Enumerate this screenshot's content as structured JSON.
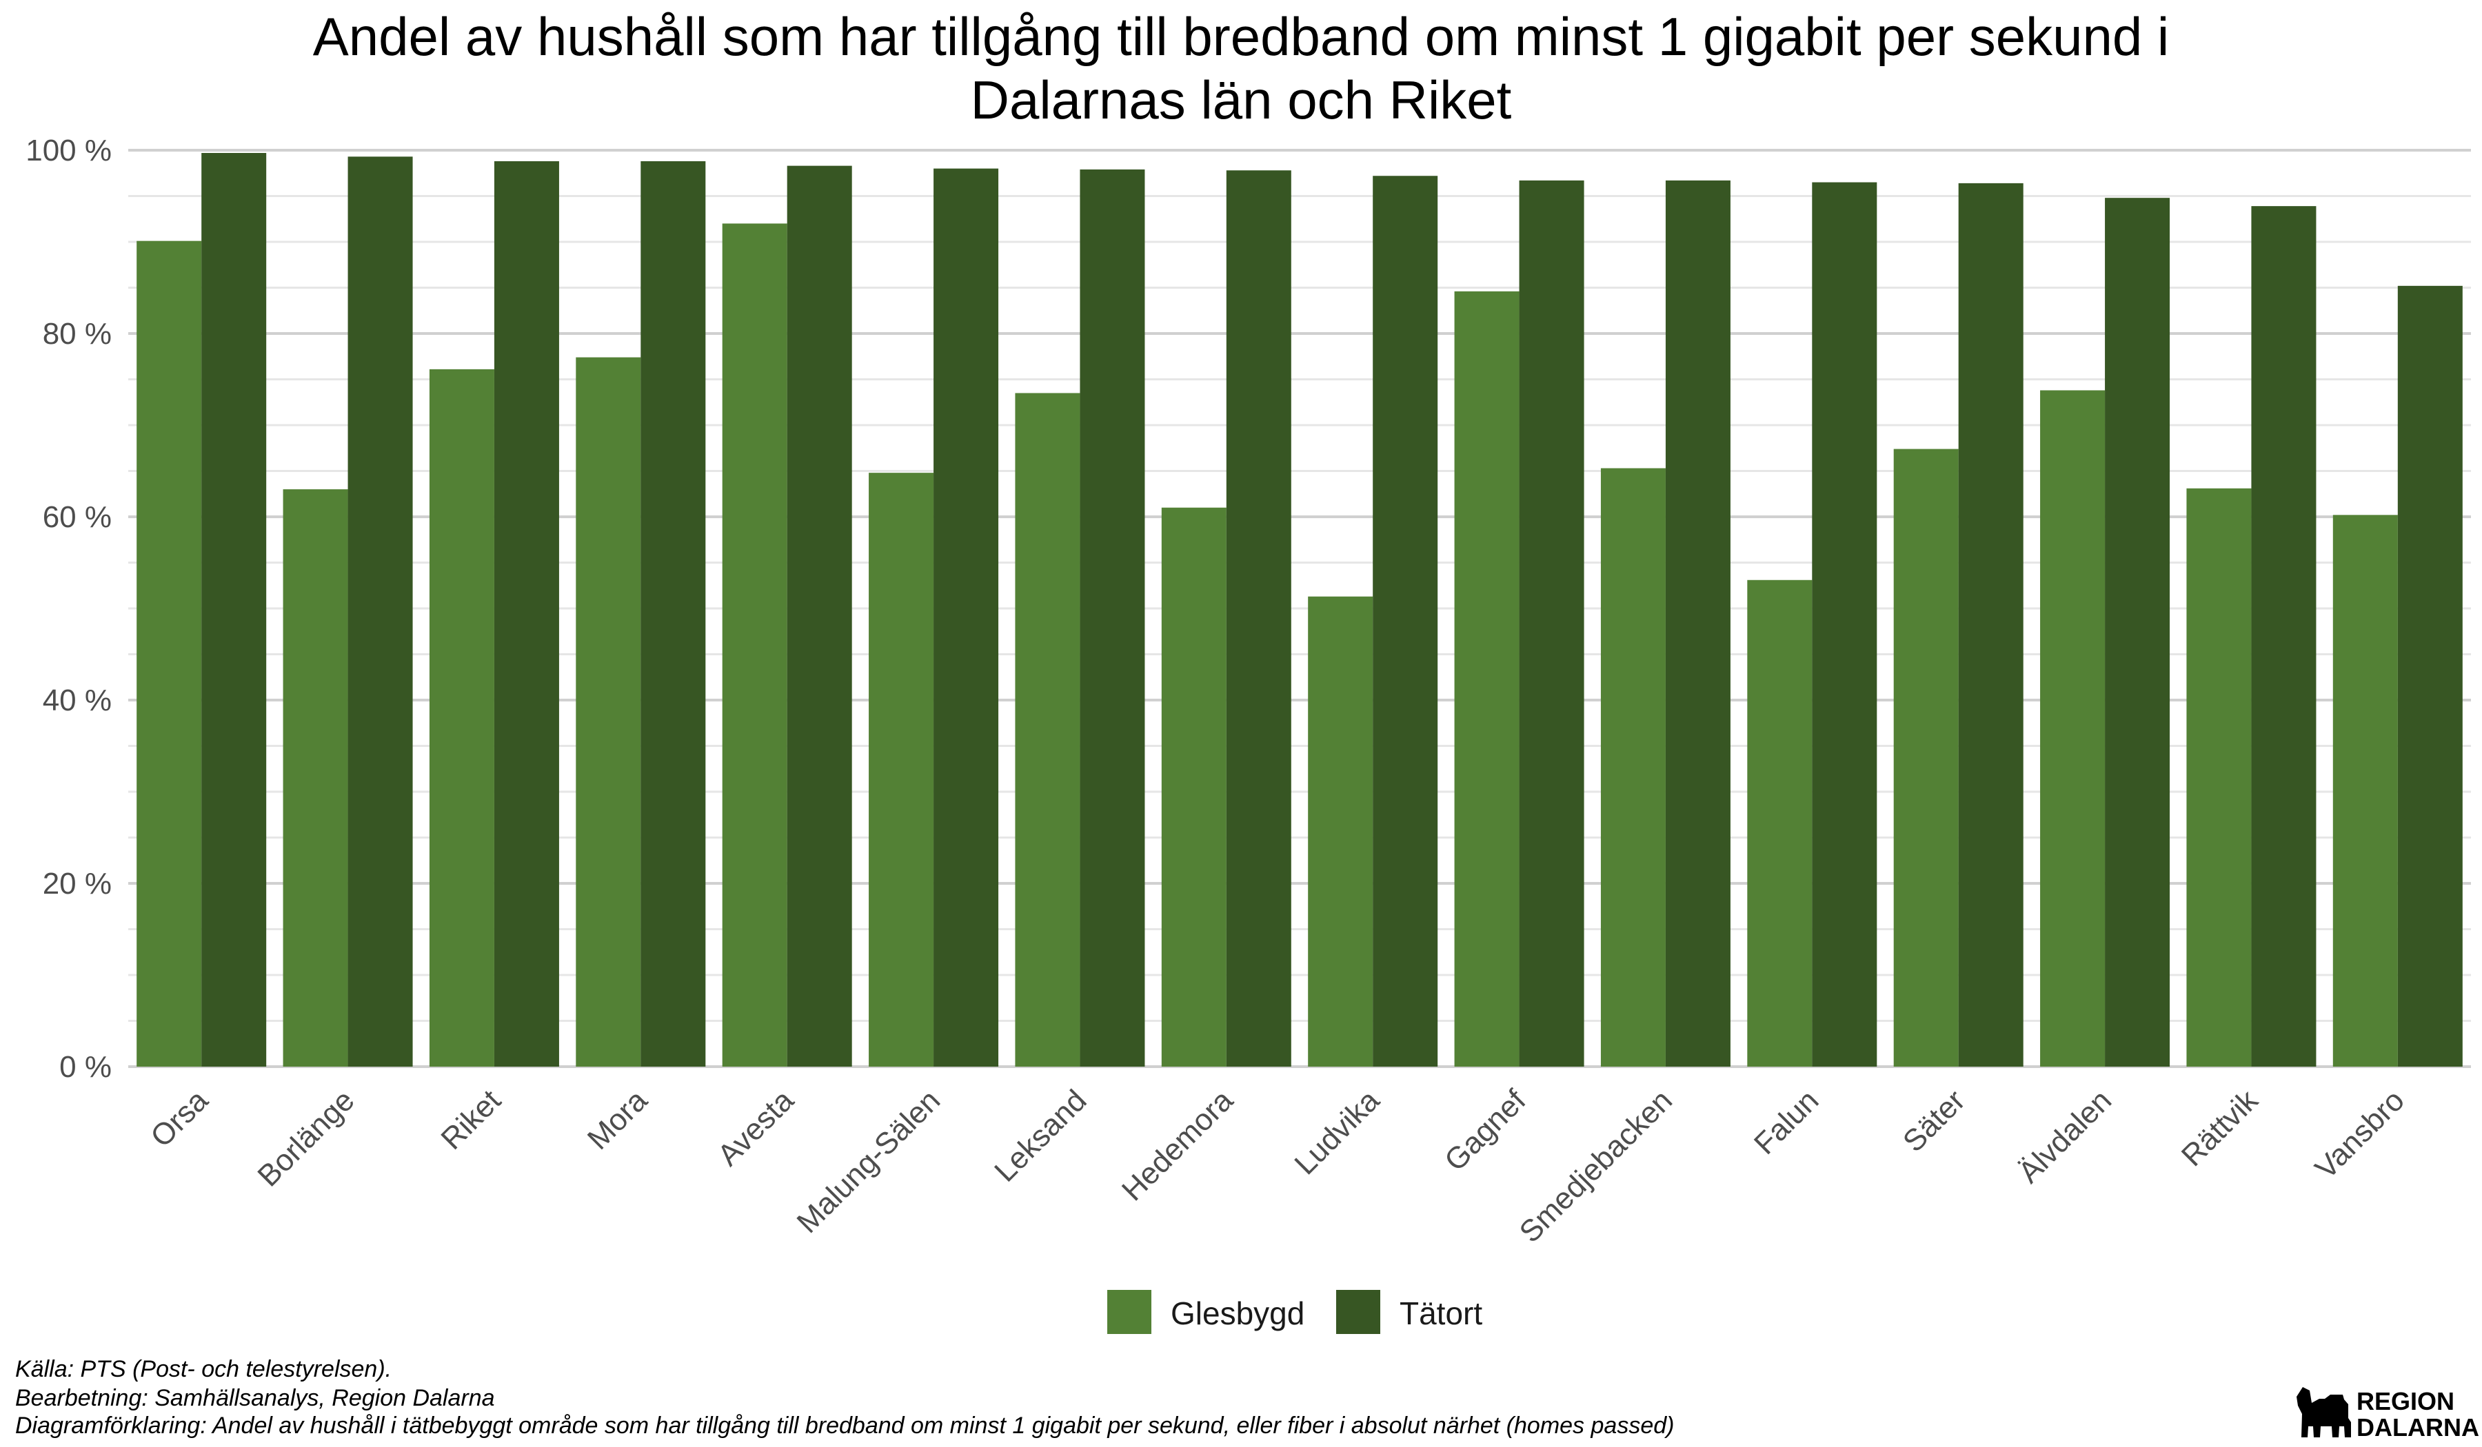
{
  "chart_data": {
    "type": "bar",
    "title_line1": "Andel av hushåll som har tillgång till bredband om minst 1 gigabit per sekund i",
    "title_line2": "Dalarnas län och Riket",
    "categories": [
      "Orsa",
      "Borlänge",
      "Riket",
      "Mora",
      "Avesta",
      "Malung-Sälen",
      "Leksand",
      "Hedemora",
      "Ludvika",
      "Gagnef",
      "Smedjebacken",
      "Falun",
      "Säter",
      "Älvdalen",
      "Rättvik",
      "Vansbro"
    ],
    "series": [
      {
        "name": "Glesbygd",
        "color": "#538135",
        "values": [
          90.1,
          63.0,
          76.1,
          77.4,
          92.0,
          64.8,
          73.5,
          61.0,
          51.3,
          84.6,
          65.3,
          53.1,
          67.4,
          73.8,
          63.1,
          60.2
        ]
      },
      {
        "name": "Tätort",
        "color": "#375623",
        "values": [
          99.7,
          99.3,
          98.8,
          98.8,
          98.3,
          98.0,
          97.9,
          97.8,
          97.2,
          96.7,
          96.7,
          96.5,
          96.4,
          94.8,
          93.9,
          85.2
        ]
      }
    ],
    "ylim": [
      0,
      100
    ],
    "yticks": [
      "0 %",
      "20 %",
      "40 %",
      "60 %",
      "80 %",
      "100 %"
    ],
    "ytick_values": [
      0,
      20,
      40,
      60,
      80,
      100
    ],
    "grid": true,
    "legend_position": "bottom"
  },
  "caption": {
    "source": "Källa: PTS (Post- och telestyrelsen).",
    "processing": "Bearbetning: Samhällsanalys, Region Dalarna",
    "explanation": "Diagramförklaring: Andel av hushåll i tätbebyggt område som har tillgång till bredband om minst 1 gigabit per sekund, eller fiber i absolut närhet (homes passed)"
  },
  "logo": {
    "line1": "REGION",
    "line2": "DALARNA",
    "icon": "dala-horse-icon"
  }
}
